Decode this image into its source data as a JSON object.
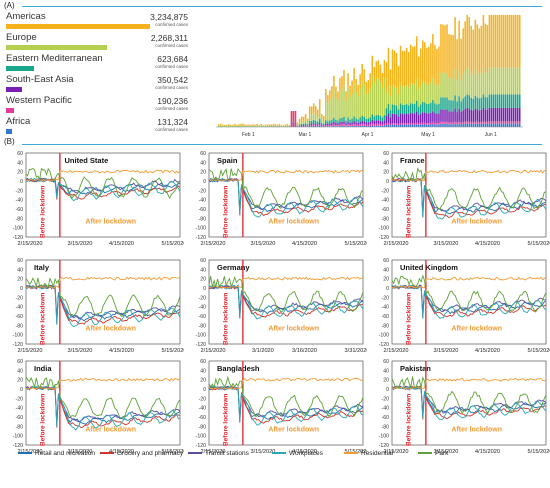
{
  "section_a": {
    "label": "(A)"
  },
  "section_b": {
    "label": "(B)"
  },
  "chart_data": [
    {
      "type": "bar",
      "categories": [
        "Americas",
        "Europe",
        "Eastern Mediterranean",
        "South-East Asia",
        "Western Pacific",
        "Africa"
      ],
      "values": [
        3234875,
        2268311,
        623684,
        350542,
        190236,
        131324
      ],
      "value_labels": [
        "3,234,875",
        "2,268,311",
        "623,684",
        "350,542",
        "190,236",
        "131,324"
      ],
      "unit_label": "confirmed cases",
      "colors": [
        "#f5b21b",
        "#b5cf50",
        "#1aa68a",
        "#7a1fb4",
        "#e33a9b",
        "#2f78d2"
      ]
    },
    {
      "type": "bar",
      "stacked": true,
      "x_ticks": [
        "Feb 1",
        "Mar 1",
        "Apr 1",
        "May 1",
        "Jun 1"
      ],
      "series_colors": [
        "#2f78d2",
        "#e33a9b",
        "#7a1fb4",
        "#1aa68a",
        "#b5cf50",
        "#f5b21b"
      ]
    },
    {
      "type": "line",
      "panels": [
        {
          "title": "United State",
          "xticks": [
            "2/15/2020",
            "3/15/2020",
            "4/15/2020",
            "5/15/2020"
          ]
        },
        {
          "title": "Spain",
          "xticks": [
            "2/15/2020",
            "3/15/2020",
            "4/15/2020",
            "5/15/2020"
          ]
        },
        {
          "title": "France",
          "xticks": [
            "2/15/2020",
            "3/15/2020",
            "4/15/2020",
            "5/15/2020"
          ]
        },
        {
          "title": "Italy",
          "xticks": [
            "2/15/2020",
            "3/15/2020",
            "4/15/2020",
            "5/15/2020"
          ]
        },
        {
          "title": "Germany",
          "xticks": [
            "2/15/2020",
            "3/1/2020",
            "3/16/2020",
            "3/31/2020"
          ]
        },
        {
          "title": "United Kingdom",
          "xticks": [
            "2/15/2020",
            "3/15/2020",
            "4/15/2020",
            "5/15/2020"
          ]
        },
        {
          "title": "India",
          "xticks": [
            "2/15/2020",
            "3/15/2020",
            "4/15/2020",
            "5/15/2020"
          ]
        },
        {
          "title": "Bangladesh",
          "xticks": [
            "2/15/2020",
            "3/15/2020",
            "4/15/2020",
            "5/15/2020"
          ]
        },
        {
          "title": "Pakistan",
          "xticks": [
            "2/15/2020",
            "3/15/2020",
            "4/15/2020",
            "5/15/2020"
          ]
        }
      ],
      "yticks": [
        "60",
        "40",
        "20",
        "0",
        "-20",
        "-40",
        "-60",
        "-80",
        "-100",
        "-120"
      ],
      "before_label": "Before lockdown",
      "after_label": "After lockdown",
      "lockdown_color": "#e0202a",
      "series": [
        {
          "name": "Retail and recreation",
          "color": "#1f6fae"
        },
        {
          "name": "Grocery and pharmacy",
          "color": "#d0352a"
        },
        {
          "name": "Transit stations",
          "color": "#5a4ea2"
        },
        {
          "name": "Workplaces",
          "color": "#2aa9b5"
        },
        {
          "name": "Residential",
          "color": "#f29b35"
        },
        {
          "name": "Park",
          "color": "#5ea236"
        }
      ]
    }
  ]
}
